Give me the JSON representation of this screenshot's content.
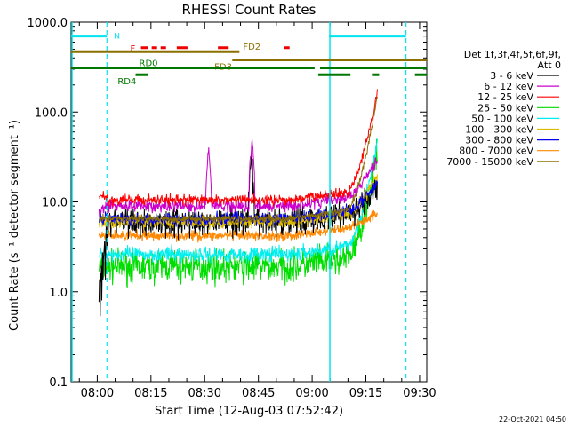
{
  "chart_data": {
    "type": "line",
    "title": "RHESSI Count Rates",
    "xlabel": "Start Time (12-Aug-03 07:52:42)",
    "ylabel": "Count Rate (s⁻¹ detector segment⁻¹)",
    "yscale": "log",
    "ylim": [
      0.1,
      1000
    ],
    "xlim_minutes": [
      0,
      99.3
    ],
    "x_start_time": "07:52:42",
    "y_ticks": [
      "0.1",
      "1.0",
      "10.0",
      "100.0",
      "1000.0"
    ],
    "x_ticks": [
      {
        "label": "08:00",
        "minute": 7.3
      },
      {
        "label": "08:15",
        "minute": 22.3
      },
      {
        "label": "08:30",
        "minute": 37.3
      },
      {
        "label": "08:45",
        "minute": 52.3
      },
      {
        "label": "09:00",
        "minute": 67.3
      },
      {
        "label": "09:15",
        "minute": 82.3
      },
      {
        "label": "09:30",
        "minute": 97.3
      }
    ],
    "legend_header": [
      "Det 1f,3f,4f,5f,6f,9f,",
      "Att 0"
    ],
    "legend_position": "right",
    "series": [
      {
        "name": "3 - 6 keV",
        "color": "#000000",
        "base": 6.0,
        "early": 1.0,
        "end": 14,
        "noise": 0.22
      },
      {
        "name": "6 - 12 keV",
        "color": "#cc00cc",
        "base": 9.0,
        "early": 8.0,
        "end": 30,
        "noise": 0.1
      },
      {
        "name": "12 - 25 keV",
        "color": "#ff0000",
        "base": 10.5,
        "early": 12,
        "end": 170,
        "noise": 0.08
      },
      {
        "name": "25 - 50 keV",
        "color": "#00dd00",
        "base": 1.9,
        "early": 1.9,
        "end": 35,
        "noise": 0.25
      },
      {
        "name": "50 - 100 keV",
        "color": "#00eeee",
        "base": 2.6,
        "early": 2.6,
        "end": 45,
        "noise": 0.12
      },
      {
        "name": "100 - 300 keV",
        "color": "#ddbb00",
        "base": 6.0,
        "early": 6.0,
        "end": 20,
        "noise": 0.1
      },
      {
        "name": "300 - 800 keV",
        "color": "#0000ee",
        "base": 6.5,
        "early": 6.8,
        "end": 16,
        "noise": 0.1
      },
      {
        "name": "800 - 7000 keV",
        "color": "#ff8800",
        "base": 4.2,
        "early": 4.2,
        "end": 7.5,
        "noise": 0.08
      },
      {
        "name": "7000 - 15000 keV",
        "color": "#8b7000",
        "base": 6.5,
        "early": 6.5,
        "end": 150,
        "noise": 0.06
      }
    ],
    "annotations": {
      "night_marker": {
        "label": "N",
        "color": "#00e5ee",
        "segments": [
          [
            0,
            10
          ],
          [
            72,
            93.5
          ]
        ],
        "y": 700
      },
      "night_boundaries_solid": [
        0,
        72
      ],
      "night_boundaries_dashed": [
        10,
        93.5
      ],
      "flare_marker": {
        "label": "F",
        "color": "#ee0000",
        "y": 520,
        "segments": [
          [
            19.5,
            21.5
          ],
          [
            22.5,
            24
          ],
          [
            25,
            26.5
          ],
          [
            29.5,
            32.5
          ],
          [
            41,
            44
          ],
          [
            59.5,
            61
          ]
        ]
      },
      "saa_markers": [
        {
          "label": "FD2",
          "color": "#8b7000",
          "y": 470,
          "segments": [
            [
              0,
              47
            ]
          ],
          "label_at": 48
        },
        {
          "label": "FD3",
          "color": "#8b7000",
          "y": 380,
          "segments": [
            [
              45,
              99.3
            ]
          ],
          "label_at": 40
        },
        {
          "label": "RD0",
          "color": "#007700",
          "y": 310,
          "segments": [
            [
              0,
              68
            ],
            [
              69.5,
              99.3
            ]
          ],
          "label_at": 19
        },
        {
          "label": "RD4",
          "color": "#007700",
          "y": 260,
          "segments": [
            [
              18,
              21.5
            ],
            [
              69,
              78
            ],
            [
              84,
              86
            ],
            [
              96,
              99.3
            ]
          ],
          "label_at": 13
        }
      ]
    },
    "data_interval_minutes": [
      7.8,
      85.5
    ],
    "spikes": [
      {
        "series": "6 - 12 keV",
        "minute": 38.4,
        "peak": 40
      },
      {
        "series": "6 - 12 keV",
        "minute": 50.5,
        "peak": 55
      },
      {
        "series": "3 - 6 keV",
        "minute": 50.3,
        "peak": 30
      }
    ]
  },
  "footer": {
    "timestamp": "22-Oct-2021 04:50"
  }
}
